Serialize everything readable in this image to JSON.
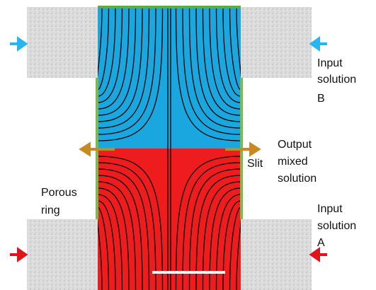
{
  "labels": {
    "input_b": [
      "Input",
      "solution",
      "B"
    ],
    "output": [
      "Output",
      "mixed",
      "solution"
    ],
    "slit": "Slit",
    "porous_ring": [
      "Porous",
      "ring"
    ],
    "input_a": [
      "Input",
      "solution",
      "A"
    ]
  }
}
